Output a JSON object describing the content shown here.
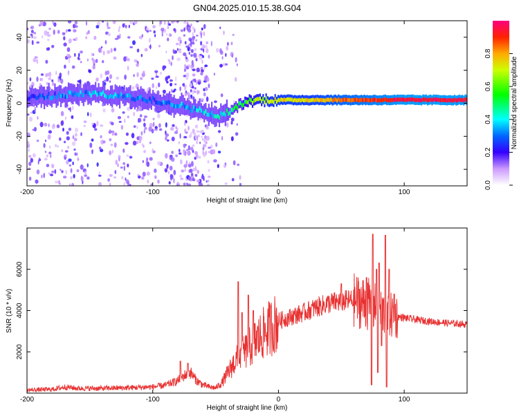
{
  "title": "GN04.2025.010.15.38.G04",
  "colorbar": {
    "label": "Normalized spectral amplitude",
    "range": [
      0,
      1
    ],
    "ticks": [
      0.0,
      0.2,
      0.4,
      0.6,
      0.8
    ],
    "tick_labels": [
      "0.0",
      "0.2",
      "0.4",
      "0.6",
      "0.8"
    ]
  },
  "chart_data": [
    {
      "type": "heatmap",
      "xlabel": "Height of straight line (km)",
      "ylabel": "Frequency (Hz)",
      "xlim": [
        -200,
        150
      ],
      "ylim": [
        -50,
        50
      ],
      "x_ticks": [
        -200,
        -100,
        0,
        100
      ],
      "x_tick_labels": [
        "-200",
        "-100",
        "0",
        "100"
      ],
      "y_ticks": [
        -40,
        -20,
        0,
        20,
        40
      ],
      "y_tick_labels": [
        "-40",
        "-20",
        "0",
        "20",
        "40"
      ],
      "colormap": "rainbow",
      "ridge_frequency": {
        "x": [
          -200,
          -175,
          -150,
          -125,
          -100,
          -80,
          -60,
          -50,
          -45,
          -40,
          -35,
          -30,
          -25,
          -20,
          0,
          50,
          75,
          100,
          125,
          150
        ],
        "y": [
          3,
          5,
          6,
          4,
          2,
          -1,
          -5,
          -8,
          -7,
          -5,
          -3,
          0,
          1,
          2,
          2,
          2,
          2,
          2,
          2,
          2
        ]
      },
      "ridge_amplitude": {
        "x": [
          -200,
          -175,
          -150,
          -125,
          -100,
          -75,
          -50,
          -40,
          -30,
          -20,
          0,
          25,
          50,
          75,
          100,
          125,
          150
        ],
        "y": [
          0.25,
          0.3,
          0.35,
          0.35,
          0.3,
          0.35,
          0.4,
          0.45,
          0.5,
          0.65,
          0.75,
          0.75,
          0.85,
          0.9,
          0.95,
          0.95,
          0.95
        ]
      }
    },
    {
      "type": "line",
      "xlabel": "Height of straight line (km)",
      "ylabel": "SNR (10 * v/v)",
      "xlim": [
        -200,
        150
      ],
      "ylim": [
        0,
        8000
      ],
      "x_ticks": [
        -200,
        -100,
        0,
        100
      ],
      "x_tick_labels": [
        "-200",
        "-100",
        "0",
        "100"
      ],
      "y_ticks": [
        2000,
        4000,
        6000
      ],
      "y_tick_labels": [
        "2000",
        "4000",
        "6000"
      ],
      "color": "#e83232",
      "series": [
        {
          "x": [
            -200,
            -180,
            -170,
            -160,
            -140,
            -120,
            -100,
            -90,
            -80,
            -75,
            -70,
            -65,
            -60,
            -55,
            -50,
            -45,
            -40,
            -35,
            -30,
            -25,
            -20,
            -15,
            -10,
            -5,
            0,
            10,
            20,
            30,
            40,
            50,
            60,
            70,
            75,
            80,
            85,
            90,
            100,
            110,
            120,
            130,
            140,
            150
          ],
          "y": [
            150,
            180,
            300,
            230,
            230,
            260,
            300,
            380,
            600,
            850,
            1000,
            600,
            400,
            300,
            250,
            500,
            1000,
            1500,
            1800,
            2100,
            2400,
            2700,
            3000,
            3250,
            3500,
            3700,
            3900,
            4150,
            4350,
            4450,
            4500,
            4350,
            4200,
            4000,
            3850,
            3750,
            3650,
            3550,
            3480,
            3420,
            3370,
            3320
          ]
        }
      ],
      "spikes": [
        {
          "x": -78,
          "y": 1550
        },
        {
          "x": -72,
          "y": 1450
        },
        {
          "x": -32,
          "y": 5400
        },
        {
          "x": -29,
          "y": 3900
        },
        {
          "x": -24,
          "y": 4750
        },
        {
          "x": -20,
          "y": 4000
        },
        {
          "x": 50,
          "y": 5300
        },
        {
          "x": 70,
          "y": 5600
        },
        {
          "x": 75,
          "y": 7700
        },
        {
          "x": 78,
          "y": 6000
        },
        {
          "x": 80,
          "y": 6300
        },
        {
          "x": 85,
          "y": 7650
        },
        {
          "x": 88,
          "y": 6000
        },
        {
          "x": 92,
          "y": 4800
        }
      ],
      "dips": [
        {
          "x": 74,
          "y": 400
        },
        {
          "x": 79,
          "y": 1000
        },
        {
          "x": 82,
          "y": 2300
        },
        {
          "x": 86,
          "y": 300
        }
      ]
    }
  ]
}
